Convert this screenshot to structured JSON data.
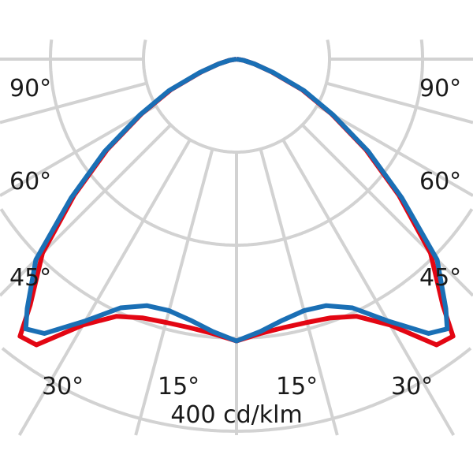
{
  "chart_data": {
    "type": "polar",
    "unit_label": "400 cd/klm",
    "radial_max": 400,
    "ring_step": 100,
    "angle_step_deg": 15,
    "grid": true,
    "angle_labels": [
      {
        "text": "90°",
        "side": "left",
        "angle": 90
      },
      {
        "text": "90°",
        "side": "right",
        "angle": 90
      },
      {
        "text": "60°",
        "side": "left",
        "angle": 60
      },
      {
        "text": "60°",
        "side": "right",
        "angle": 60
      },
      {
        "text": "45°",
        "side": "left",
        "angle": 45
      },
      {
        "text": "45°",
        "side": "right",
        "angle": 45
      },
      {
        "text": "30°",
        "side": "left",
        "angle": 30
      },
      {
        "text": "15°",
        "side": "left",
        "angle": 15
      },
      {
        "text": "15°",
        "side": "right",
        "angle": 15
      },
      {
        "text": "30°",
        "side": "right",
        "angle": 30
      }
    ],
    "angles": [
      0,
      5,
      10,
      15,
      20,
      25,
      30,
      35,
      38,
      40,
      45,
      50,
      55,
      60,
      65,
      70,
      75,
      80,
      90
    ],
    "series": [
      {
        "color": "#e30613",
        "values": [
          303,
          296,
          293,
          293,
          296,
          305,
          330,
          375,
          378,
          345,
          295,
          228,
          170,
          118,
          78,
          40,
          20,
          8,
          0
        ]
      },
      {
        "color": "#1a6fb5",
        "values": [
          303,
          294,
          285,
          280,
          282,
          295,
          325,
          360,
          368,
          350,
          305,
          232,
          173,
          120,
          80,
          42,
          20,
          8,
          0
        ]
      }
    ]
  }
}
